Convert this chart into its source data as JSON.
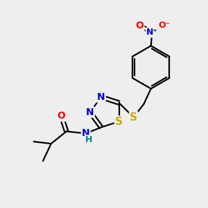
{
  "bg_color": "#eeeeee",
  "atom_colors": {
    "C": "#000000",
    "N": "#0000cc",
    "O": "#ff0000",
    "S": "#ccaa00",
    "H": "#008080"
  },
  "bond_color": "#000000",
  "bond_width": 1.6,
  "figsize": [
    3.0,
    3.0
  ],
  "dpi": 100
}
